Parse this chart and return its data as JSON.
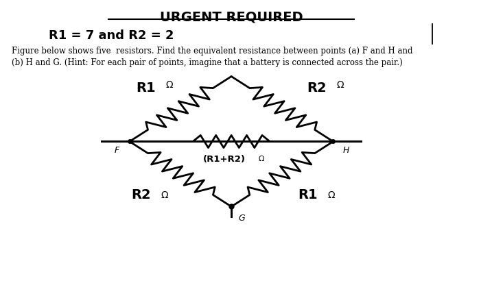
{
  "title": "URGENT REQUIRED",
  "subtitle": "R1 = 7 and R2 = 2",
  "body_text": "Figure below shows five  resistors. Find the equivalent resistance between points (a) F and H and\n(b) H and G. (Hint: For each pair of points, imagine that a battery is connected across the pair.)",
  "R1": 7,
  "R2": 2,
  "bg_color": "#ffffff",
  "text_color": "#000000",
  "fig_width": 7.17,
  "fig_height": 4.13,
  "dpi": 100,
  "F_label": "F",
  "H_label": "H",
  "G_label": "G",
  "R1_label": "R1",
  "R2_label": "R2",
  "R1R2_label": "(R1+R2)",
  "omega": "Ω"
}
